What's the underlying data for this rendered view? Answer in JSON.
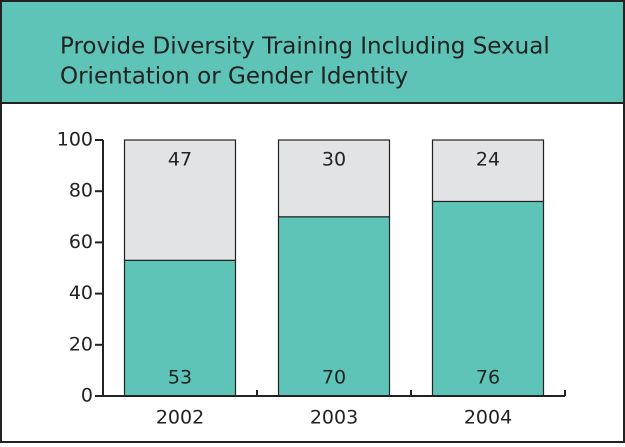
{
  "chart_data": {
    "type": "stacked_bar",
    "title": [
      "Provide Diversity Training Including Sexual",
      "Orientation or Gender Identity"
    ],
    "categories": [
      "2002",
      "2003",
      "2004"
    ],
    "series": [
      {
        "color": "#5fc4b8",
        "values": [
          53,
          70,
          76
        ]
      },
      {
        "color": "#e2e3e5",
        "values": [
          47,
          30,
          24
        ]
      }
    ],
    "ylim": [
      0,
      100
    ],
    "yticks": [
      0,
      20,
      40,
      60,
      80,
      100
    ]
  }
}
